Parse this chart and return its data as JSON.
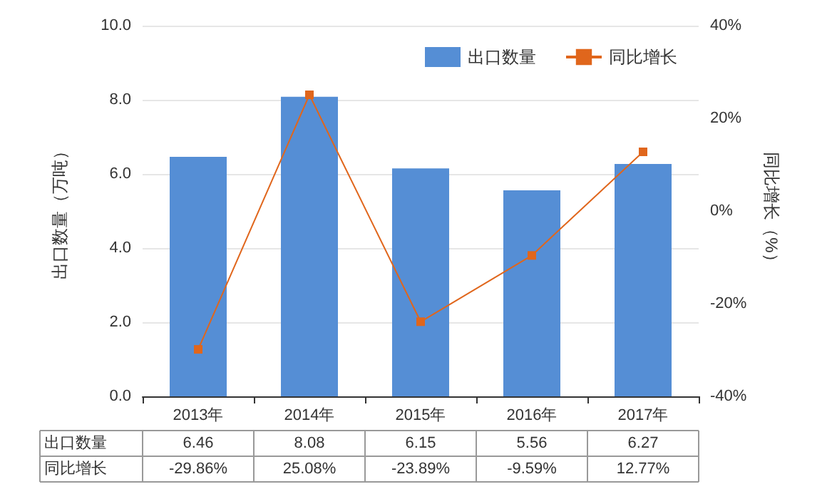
{
  "chart_data": {
    "type": "bar",
    "categories": [
      "2013年",
      "2014年",
      "2015年",
      "2016年",
      "2017年"
    ],
    "ylabel": "出口数量（万吨）",
    "y2label": "同比增长（%）",
    "series": [
      {
        "name": "出口数量",
        "color": "#558ed5",
        "values": [
          6.46,
          8.08,
          6.15,
          5.56,
          6.27
        ]
      },
      {
        "name": "同比增长",
        "type": "line",
        "axis": "y2",
        "color": "#e0661c",
        "marker": "square",
        "values": [
          -29.86,
          25.08,
          -23.89,
          -9.59,
          12.77
        ],
        "value_labels": [
          "-29.86%",
          "25.08%",
          "-23.89%",
          "-9.59%",
          "12.77%"
        ]
      }
    ],
    "ylim": [
      0,
      10
    ],
    "yticks": [
      {
        "value": 0,
        "label": "0.0"
      },
      {
        "value": 2,
        "label": "2.0"
      },
      {
        "value": 4,
        "label": "4.0"
      },
      {
        "value": 6,
        "label": "6.0"
      },
      {
        "value": 8,
        "label": "8.0"
      },
      {
        "value": 10,
        "label": "10.0"
      }
    ],
    "y2lim": [
      -40,
      40
    ],
    "y2ticks": [
      {
        "value": -40,
        "label": "-40%"
      },
      {
        "value": -20,
        "label": "-20%"
      },
      {
        "value": 0,
        "label": "0%"
      },
      {
        "value": 20,
        "label": "20%"
      },
      {
        "value": 40,
        "label": "40%"
      }
    ],
    "grid": "y",
    "legend": "top right",
    "data_labels": true
  }
}
